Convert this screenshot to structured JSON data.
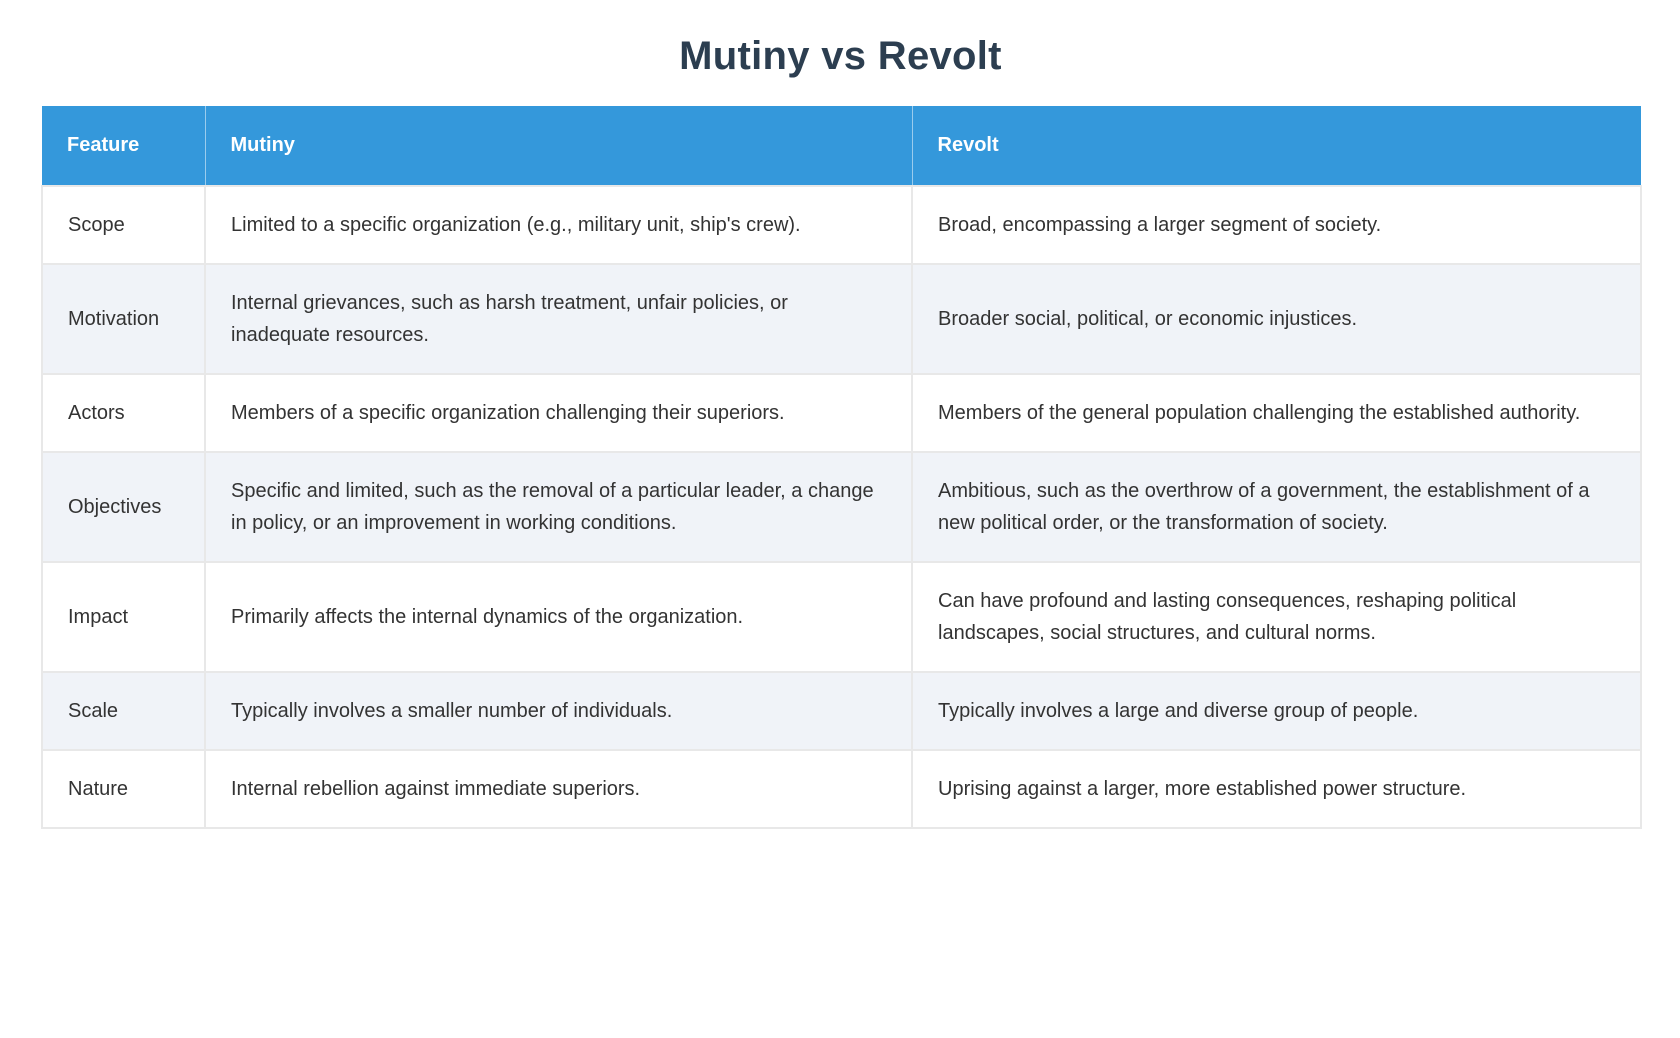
{
  "page": {
    "title": "Mutiny vs Revolt"
  },
  "colors": {
    "header_bg": "#3498db",
    "header_text": "#ffffff",
    "title_text": "#2c3e50",
    "body_text": "#333333",
    "row_alt_bg": "#f0f3f8",
    "border": "#e8e8e8"
  },
  "table": {
    "columns": [
      "Feature",
      "Mutiny",
      "Revolt"
    ],
    "rows": [
      {
        "feature": "Scope",
        "mutiny": "Limited to a specific organization (e.g., military unit, ship's crew).",
        "revolt": "Broad, encompassing a larger segment of society."
      },
      {
        "feature": "Motivation",
        "mutiny": "Internal grievances, such as harsh treatment, unfair policies, or inadequate resources.",
        "revolt": "Broader social, political, or economic injustices."
      },
      {
        "feature": "Actors",
        "mutiny": "Members of a specific organization challenging their superiors.",
        "revolt": "Members of the general population challenging the established authority."
      },
      {
        "feature": "Objectives",
        "mutiny": "Specific and limited, such as the removal of a particular leader, a change in policy, or an improvement in working conditions.",
        "revolt": "Ambitious, such as the overthrow of a government, the establishment of a new political order, or the transformation of society."
      },
      {
        "feature": "Impact",
        "mutiny": "Primarily affects the internal dynamics of the organization.",
        "revolt": "Can have profound and lasting consequences, reshaping political landscapes, social structures, and cultural norms."
      },
      {
        "feature": "Scale",
        "mutiny": "Typically involves a smaller number of individuals.",
        "revolt": "Typically involves a large and diverse group of people."
      },
      {
        "feature": "Nature",
        "mutiny": "Internal rebellion against immediate superiors.",
        "revolt": "Uprising against a larger, more established power structure."
      }
    ]
  }
}
